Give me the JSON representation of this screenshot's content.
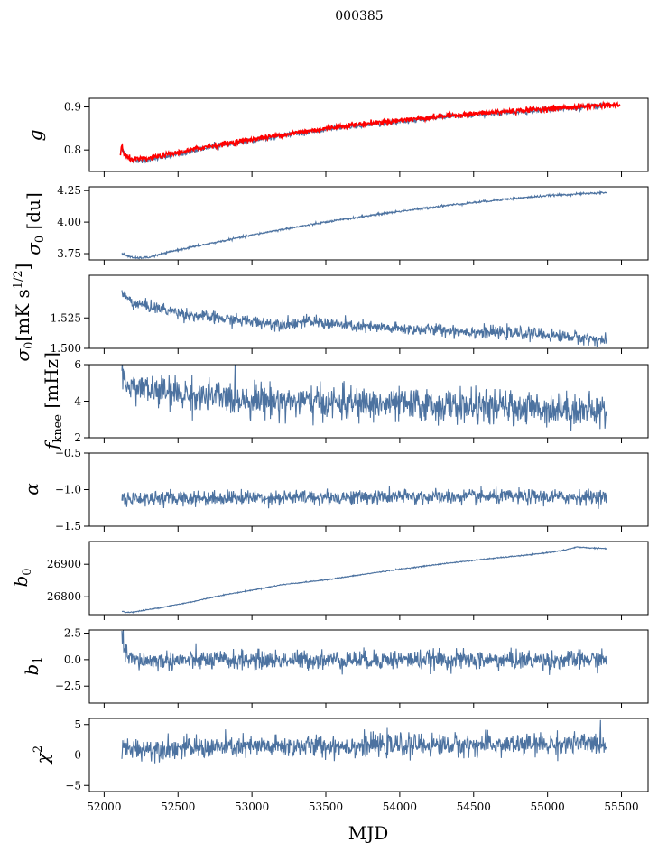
{
  "figure": {
    "title": "000385",
    "xlabel": "MJD"
  },
  "colors": {
    "series": "#4c72a0",
    "highlight": "#ff0000",
    "axis": "#000000"
  },
  "chart_data": {
    "type": "line",
    "title": "000385",
    "xlabel": "MJD",
    "xlim": [
      51900,
      55680
    ],
    "xticks": [
      52000,
      52500,
      53000,
      53500,
      54000,
      54500,
      55000,
      55500
    ],
    "panels": [
      {
        "ylabel_plain": "g",
        "ylim": [
          0.75,
          0.92
        ],
        "yticks": [
          0.8,
          0.9
        ],
        "ytick_labels": [
          "0.8",
          "0.9"
        ],
        "noise": 0.003,
        "series": [
          {
            "x": [
              52120,
              52160,
              52200,
              52300,
              52500,
              52700,
              53000,
              53300,
              53600,
              54000,
              54400,
              54800,
              55000,
              55200,
              55400
            ],
            "y": [
              0.8,
              0.783,
              0.776,
              0.777,
              0.79,
              0.805,
              0.822,
              0.838,
              0.852,
              0.866,
              0.879,
              0.889,
              0.894,
              0.898,
              0.903
            ]
          },
          {
            "color": "highlight",
            "x": [
              52110,
              52120,
              52130,
              52160,
              52200,
              52300,
              52500,
              52700,
              53000,
              53300,
              53600,
              54000,
              54400,
              54800,
              55000,
              55200,
              55400,
              55490
            ],
            "y": [
              0.79,
              0.815,
              0.79,
              0.782,
              0.778,
              0.78,
              0.794,
              0.808,
              0.825,
              0.84,
              0.855,
              0.869,
              0.882,
              0.891,
              0.896,
              0.9,
              0.905,
              0.904
            ]
          }
        ]
      },
      {
        "ylabel_plain": "sigma_0 [du]",
        "ylim": [
          3.7,
          4.28
        ],
        "yticks": [
          3.75,
          4.0,
          4.25
        ],
        "ytick_labels": [
          "3.75",
          "4.00",
          "4.25"
        ],
        "noise": 0.004,
        "series": [
          {
            "x": [
              52120,
              52200,
              52300,
              52500,
              52800,
              53100,
              53500,
              53900,
              54300,
              54700,
              55000,
              55400
            ],
            "y": [
              3.75,
              3.715,
              3.72,
              3.78,
              3.85,
              3.92,
              4.0,
              4.07,
              4.13,
              4.18,
              4.21,
              4.235
            ]
          }
        ]
      },
      {
        "ylabel_plain": "sigma_0 [mK s^1/2]",
        "ylim": [
          1.5,
          1.56
        ],
        "yticks": [
          1.5,
          1.525
        ],
        "ytick_labels": [
          "1.500",
          "1.525"
        ],
        "noise": 0.0025,
        "series": [
          {
            "x": [
              52120,
              52200,
              52400,
              52600,
              52900,
              53200,
              53400,
              53700,
              54000,
              54300,
              54600,
              54900,
              55100,
              55300,
              55400
            ],
            "y": [
              1.545,
              1.537,
              1.532,
              1.527,
              1.523,
              1.52,
              1.522,
              1.518,
              1.516,
              1.515,
              1.513,
              1.512,
              1.51,
              1.508,
              1.506
            ]
          }
        ]
      },
      {
        "ylabel_plain": "f_knee [mHz]",
        "ylim": [
          2,
          6
        ],
        "yticks": [
          2,
          4,
          6
        ],
        "ytick_labels": [
          "2",
          "4",
          "6"
        ],
        "noise": 0.45,
        "series": [
          {
            "x": [
              52120,
              52300,
              52600,
              53000,
              53500,
              54000,
              54500,
              55000,
              55400
            ],
            "y": [
              5.0,
              4.6,
              4.3,
              4.1,
              3.9,
              3.8,
              3.7,
              3.6,
              3.45
            ]
          }
        ]
      },
      {
        "ylabel_plain": "alpha",
        "ylim": [
          -1.5,
          -0.5
        ],
        "yticks": [
          -1.5,
          -1.0,
          -0.5
        ],
        "ytick_labels": [
          "−1.5",
          "−1.0",
          "−0.5"
        ],
        "noise": 0.05,
        "series": [
          {
            "x": [
              52120,
              53000,
              54000,
              55400
            ],
            "y": [
              -1.12,
              -1.11,
              -1.1,
              -1.1
            ]
          }
        ]
      },
      {
        "ylabel_plain": "b_0",
        "ylim": [
          26745,
          26970
        ],
        "yticks": [
          26800,
          26900
        ],
        "ytick_labels": [
          "26800",
          "26900"
        ],
        "noise": 0.8,
        "series": [
          {
            "x": [
              52120,
              52150,
              52200,
              52400,
              52600,
              52800,
              53000,
              53200,
              53500,
              53800,
              54000,
              54300,
              54600,
              54900,
              55100,
              55200,
              55300,
              55400
            ],
            "y": [
              26755,
              26752,
              26753,
              26768,
              26785,
              26805,
              26820,
              26837,
              26852,
              26872,
              26885,
              26902,
              26917,
              26930,
              26942,
              26953,
              26950,
              26948
            ]
          }
        ]
      },
      {
        "ylabel_plain": "b_1",
        "ylim": [
          -4.1,
          2.8
        ],
        "yticks": [
          -2.5,
          0.0,
          2.5
        ],
        "ytick_labels": [
          "−2.5",
          "0.0",
          "2.5"
        ],
        "noise": 0.45,
        "series": [
          {
            "x": [
              52120,
              52130,
              52160,
              52200,
              53000,
              54000,
              55000,
              55400
            ],
            "y": [
              2.2,
              1.2,
              0.3,
              -0.1,
              -0.05,
              0.0,
              -0.05,
              0.0
            ]
          }
        ]
      },
      {
        "ylabel_plain": "chi^2",
        "ylim": [
          -6,
          6
        ],
        "yticks": [
          -5,
          0,
          5
        ],
        "ytick_labels": [
          "−5",
          "0",
          "5"
        ],
        "noise": 0.9,
        "series": [
          {
            "x": [
              52120,
              53000,
              54000,
              55000,
              55400
            ],
            "y": [
              1.0,
              1.3,
              1.6,
              1.7,
              1.9
            ]
          }
        ]
      }
    ]
  }
}
